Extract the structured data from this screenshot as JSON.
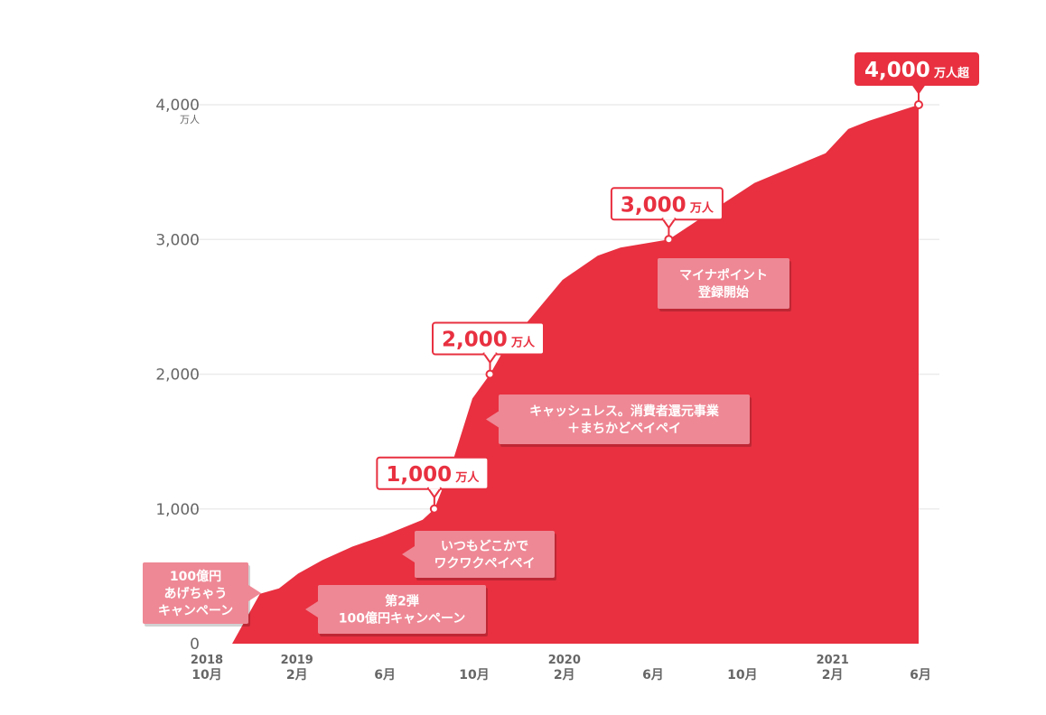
{
  "chart_data": {
    "type": "area",
    "title": "",
    "xlabel": "",
    "ylabel": "",
    "color": "#e83040",
    "annotation_color": "#ee8895",
    "ylim": [
      0,
      4000
    ],
    "yticks": [
      0,
      1000,
      2000,
      3000,
      4000
    ],
    "ytick_labels": [
      "0",
      "1,000",
      "2,000",
      "3,000",
      "4,000"
    ],
    "y_unit_label": "万人",
    "xticks": [
      {
        "date": "2018-10",
        "year": "2018",
        "month": "10月"
      },
      {
        "date": "2019-02",
        "year": "2019",
        "month": "2月"
      },
      {
        "date": "2019-06",
        "year": "",
        "month": "6月"
      },
      {
        "date": "2019-10",
        "year": "",
        "month": "10月"
      },
      {
        "date": "2020-02",
        "year": "2020",
        "month": "2月"
      },
      {
        "date": "2020-06",
        "year": "",
        "month": "6月"
      },
      {
        "date": "2020-10",
        "year": "",
        "month": "10月"
      },
      {
        "date": "2021-02",
        "year": "2021",
        "month": "2月"
      },
      {
        "date": "2021-06",
        "year": "",
        "month": "6月"
      }
    ],
    "series": [
      {
        "points": [
          {
            "x": "2018-10-01",
            "y": 0
          },
          {
            "x": "2018-11-07",
            "y": 0
          },
          {
            "x": "2018-12-15",
            "y": 370
          },
          {
            "x": "2019-01-10",
            "y": 410
          },
          {
            "x": "2019-02-05",
            "y": 520
          },
          {
            "x": "2019-03-10",
            "y": 620
          },
          {
            "x": "2019-04-20",
            "y": 720
          },
          {
            "x": "2019-06-01",
            "y": 800
          },
          {
            "x": "2019-07-25",
            "y": 920
          },
          {
            "x": "2019-08-10",
            "y": 1000
          },
          {
            "x": "2019-09-01",
            "y": 1300
          },
          {
            "x": "2019-10-01",
            "y": 1820
          },
          {
            "x": "2019-10-25",
            "y": 2000
          },
          {
            "x": "2019-11-15",
            "y": 2200
          },
          {
            "x": "2019-12-20",
            "y": 2420
          },
          {
            "x": "2020-02-01",
            "y": 2700
          },
          {
            "x": "2020-03-20",
            "y": 2880
          },
          {
            "x": "2020-04-20",
            "y": 2940
          },
          {
            "x": "2020-06-25",
            "y": 3000
          },
          {
            "x": "2020-08-25",
            "y": 3220
          },
          {
            "x": "2020-10-20",
            "y": 3420
          },
          {
            "x": "2021-01-25",
            "y": 3640
          },
          {
            "x": "2021-02-25",
            "y": 3820
          },
          {
            "x": "2021-03-25",
            "y": 3880
          },
          {
            "x": "2021-06-01",
            "y": 4000
          }
        ]
      }
    ],
    "milestones": [
      {
        "x": "2019-08-10",
        "y": 1000,
        "value": "1,000",
        "unit": "万人",
        "highlight": false
      },
      {
        "x": "2019-10-25",
        "y": 2000,
        "value": "2,000",
        "unit": "万人",
        "highlight": false
      },
      {
        "x": "2020-06-25",
        "y": 3000,
        "value": "3,000",
        "unit": "万人",
        "highlight": false
      },
      {
        "x": "2021-06-01",
        "y": 4000,
        "value": "4,000",
        "unit": "万人超",
        "highlight": true
      }
    ],
    "annotations": [
      {
        "lines": [
          "100億円",
          "あげちゃう",
          "キャンペーン"
        ]
      },
      {
        "lines": [
          "第2弾",
          "100億円キャンペーン"
        ]
      },
      {
        "lines": [
          "いつもどこかで",
          "ワクワクペイペイ"
        ]
      },
      {
        "lines": [
          "キャッシュレス。消費者還元事業",
          "＋まちかどペイペイ"
        ]
      },
      {
        "lines": [
          "マイナポイント",
          "登録開始"
        ]
      }
    ]
  }
}
